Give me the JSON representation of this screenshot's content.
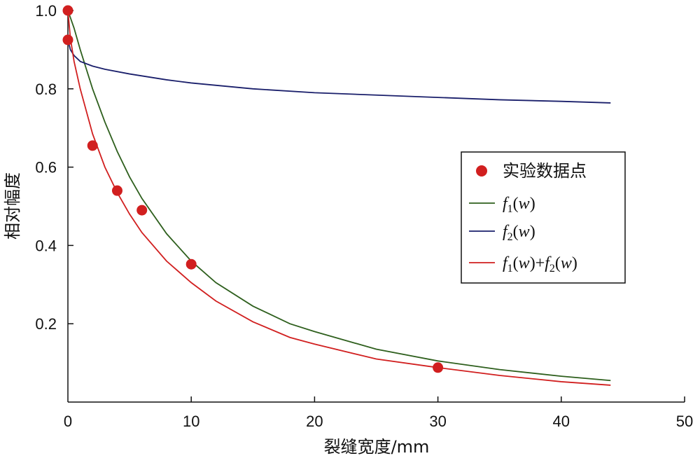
{
  "chart_data": {
    "type": "line",
    "title": "",
    "xlabel": "裂缝宽度/mm",
    "ylabel": "相对幅度",
    "xlim": [
      0,
      50
    ],
    "ylim": [
      0,
      1.0
    ],
    "xticks": [
      0,
      10,
      20,
      30,
      40,
      50
    ],
    "xtick_labels": [
      "0",
      "10",
      "20",
      "30",
      "40",
      "50"
    ],
    "yticks": [
      0.2,
      0.4,
      0.6,
      0.8,
      1.0
    ],
    "ytick_labels": [
      "0.2",
      "0.4",
      "0.6",
      "0.8",
      "1.0"
    ],
    "grid": false,
    "legend_position": "right",
    "legend": [
      {
        "label": "实验数据点",
        "color": "#d11f1f",
        "marker": "circle"
      },
      {
        "label": "f1(w)",
        "color": "#2e5f1d",
        "marker": "line"
      },
      {
        "label": "f2(w)",
        "color": "#1a1f6b",
        "marker": "line"
      },
      {
        "label": "f1(w)+f2(w)",
        "color": "#d11f1f",
        "marker": "line"
      }
    ],
    "series": [
      {
        "name": "实验数据点",
        "kind": "scatter",
        "color": "#d11f1f",
        "x": [
          0,
          0,
          2,
          4,
          6,
          10,
          30
        ],
        "y": [
          1.0,
          0.925,
          0.655,
          0.54,
          0.49,
          0.352,
          0.088
        ]
      },
      {
        "name": "f1(w)",
        "kind": "line",
        "color": "#2e5f1d",
        "x": [
          0,
          0.5,
          1,
          2,
          3,
          4,
          5,
          6,
          8,
          10,
          12,
          15,
          18,
          20,
          25,
          30,
          35,
          40,
          44
        ],
        "y": [
          1.0,
          0.955,
          0.9,
          0.8,
          0.715,
          0.64,
          0.575,
          0.52,
          0.43,
          0.36,
          0.305,
          0.245,
          0.2,
          0.18,
          0.135,
          0.105,
          0.083,
          0.066,
          0.055
        ]
      },
      {
        "name": "f2(w)",
        "kind": "line",
        "color": "#1a1f6b",
        "x": [
          0,
          0.2,
          0.5,
          1,
          2,
          3,
          5,
          8,
          10,
          15,
          20,
          25,
          30,
          35,
          40,
          44
        ],
        "y": [
          0.925,
          0.9,
          0.885,
          0.87,
          0.858,
          0.85,
          0.838,
          0.823,
          0.815,
          0.8,
          0.79,
          0.784,
          0.778,
          0.772,
          0.768,
          0.764
        ]
      },
      {
        "name": "f1(w)+f2(w)",
        "kind": "line",
        "color": "#d11f1f",
        "x": [
          0,
          0.2,
          0.5,
          1,
          2,
          3,
          4,
          5,
          6,
          8,
          10,
          12,
          15,
          18,
          20,
          25,
          30,
          35,
          40,
          44
        ],
        "y": [
          1.0,
          0.93,
          0.87,
          0.8,
          0.685,
          0.6,
          0.535,
          0.48,
          0.433,
          0.36,
          0.305,
          0.258,
          0.205,
          0.165,
          0.148,
          0.11,
          0.088,
          0.068,
          0.052,
          0.043
        ]
      }
    ]
  }
}
